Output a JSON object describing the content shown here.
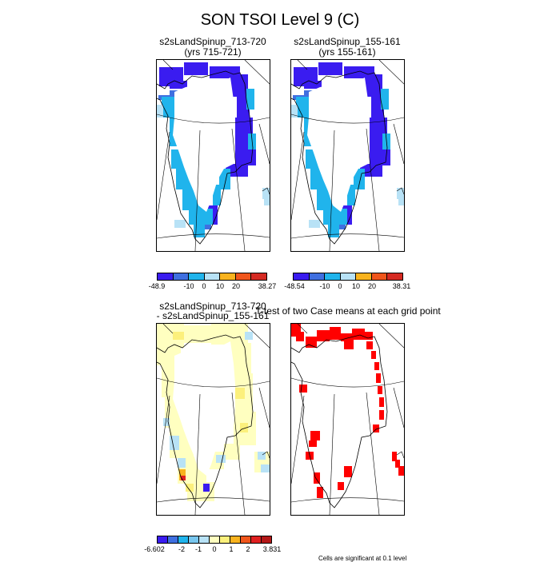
{
  "figure": {
    "title": "SON TSOI Level 9 (C)",
    "note": "Cells are significant at 0.1 level"
  },
  "panels": [
    {
      "title1": "s2sLandSpinup_713-720",
      "title2": "(yrs 715-721)"
    },
    {
      "title1": "s2sLandSpinup_155-161",
      "title2": "(yrs 155-161)"
    },
    {
      "title1": "s2sLandSpinup_713-720",
      "title2": "- s2sLandSpinup_155-161"
    },
    {
      "title1": "T-test of two Case means at each grid point",
      "title2": ""
    }
  ],
  "chart_data": [
    {
      "type": "heatmap",
      "title": "s2sLandSpinup_713-720 (yrs 715-721)",
      "colorbar": {
        "colors": [
          "#3a1cf0",
          "#3f6fe0",
          "#20b4ec",
          "#b8e2f6",
          "#f9b31e",
          "#f0561c",
          "#d52a22"
        ],
        "ticks": [
          "-48.9",
          "-10",
          "0",
          "10",
          "20",
          "38.27"
        ]
      },
      "field": "Greenland soil temperature: interior not shown, coastal cells -48.9 to 0 C"
    },
    {
      "type": "heatmap",
      "title": "s2sLandSpinup_155-161 (yrs 155-161)",
      "colorbar": {
        "colors": [
          "#3a1cf0",
          "#3f6fe0",
          "#20b4ec",
          "#b8e2f6",
          "#f9b31e",
          "#f0561c",
          "#d52a22"
        ],
        "ticks": [
          "-48.54",
          "-10",
          "0",
          "10",
          "20",
          "38.31"
        ]
      },
      "field": "Greenland soil temperature: interior not shown, coastal cells -48.54 to 0 C"
    },
    {
      "type": "heatmap",
      "title": "s2sLandSpinup_713-720 - s2sLandSpinup_155-161",
      "colorbar": {
        "colors": [
          "#3a1cf0",
          "#3f6fe0",
          "#20b4ec",
          "#78c6ee",
          "#b8e2f6",
          "#ffffc0",
          "#fcf07c",
          "#f9b31e",
          "#f0561c",
          "#e02020",
          "#b41818"
        ],
        "ticks": [
          "-6.602",
          "-2",
          "-1",
          "0",
          "1",
          "2",
          "3.831"
        ]
      },
      "field": "difference mostly 0 to 1 C, few cells -1 to 0, one cell near 3.8, one cell near -6.6"
    },
    {
      "type": "heatmap",
      "title": "T-test of two Case means at each grid point",
      "field": "red cells = significant at 0.1 level"
    }
  ]
}
